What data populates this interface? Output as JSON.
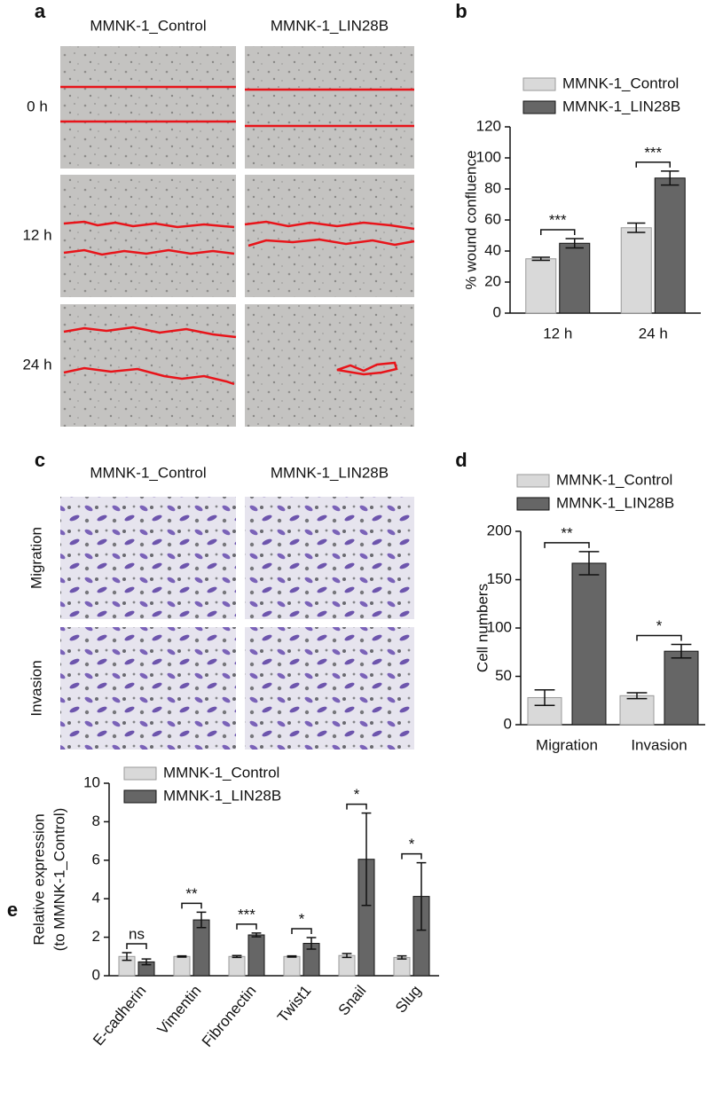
{
  "figure": {
    "panel_labels": [
      "a",
      "b",
      "c",
      "d",
      "e"
    ],
    "wound_assay": {
      "columns": [
        "MMNK-1_Control",
        "MMNK-1_LIN28B"
      ],
      "rows": [
        "0 h",
        "12 h",
        "24 h"
      ]
    },
    "transwell_assay": {
      "columns": [
        "MMNK-1_Control",
        "MMNK-1_LIN28B"
      ],
      "rows": [
        "Migration",
        "Invasion"
      ]
    }
  },
  "chart_data": [
    {
      "type": "bar",
      "ylabel": [
        "% wound confluence"
      ],
      "categories": [
        "12 h",
        "24 h"
      ],
      "series": [
        {
          "name": "MMNK-1_Control",
          "color": "#d9d9d9",
          "values": [
            35,
            55
          ],
          "errors": [
            1,
            3
          ]
        },
        {
          "name": "MMNK-1_LIN28B",
          "color": "#666666",
          "values": [
            45,
            87
          ],
          "errors": [
            3,
            4.5
          ]
        }
      ],
      "significance": [
        "***",
        "***"
      ],
      "ylim": [
        0,
        120
      ],
      "yticks": [
        0,
        20,
        40,
        60,
        80,
        100,
        120
      ],
      "grid": false
    },
    {
      "type": "bar",
      "ylabel": [
        "Cell numbers"
      ],
      "categories": [
        "Migration",
        "Invasion"
      ],
      "series": [
        {
          "name": "MMNK-1_Control",
          "color": "#d9d9d9",
          "values": [
            28,
            30
          ],
          "errors": [
            8,
            3
          ]
        },
        {
          "name": "MMNK-1_LIN28B",
          "color": "#666666",
          "values": [
            167,
            76
          ],
          "errors": [
            12,
            7
          ]
        }
      ],
      "significance": [
        "**",
        "*"
      ],
      "ylim": [
        0,
        200
      ],
      "yticks": [
        0,
        50,
        100,
        150,
        200
      ],
      "grid": false
    },
    {
      "type": "bar",
      "ylabel": [
        "Relative expression",
        "(to MMNK-1_Control)"
      ],
      "categories": [
        "E-cadherin",
        "Vimentin",
        "Fibronectin",
        "Twist1",
        "Snail",
        "Slug"
      ],
      "series": [
        {
          "name": "MMNK-1_Control",
          "color": "#d9d9d9",
          "values": [
            1.0,
            1.0,
            1.0,
            1.0,
            1.05,
            0.95
          ],
          "errors": [
            0.2,
            0.03,
            0.05,
            0.03,
            0.1,
            0.08
          ]
        },
        {
          "name": "MMNK-1_LIN28B",
          "color": "#666666",
          "values": [
            0.72,
            2.9,
            2.12,
            1.68,
            6.05,
            4.12
          ],
          "errors": [
            0.15,
            0.4,
            0.1,
            0.3,
            2.4,
            1.75
          ]
        }
      ],
      "significance": [
        "ns",
        "**",
        "***",
        "*",
        "*",
        "*"
      ],
      "ylim": [
        0,
        10
      ],
      "yticks": [
        0,
        2,
        4,
        6,
        8,
        10
      ],
      "grid": false
    }
  ]
}
